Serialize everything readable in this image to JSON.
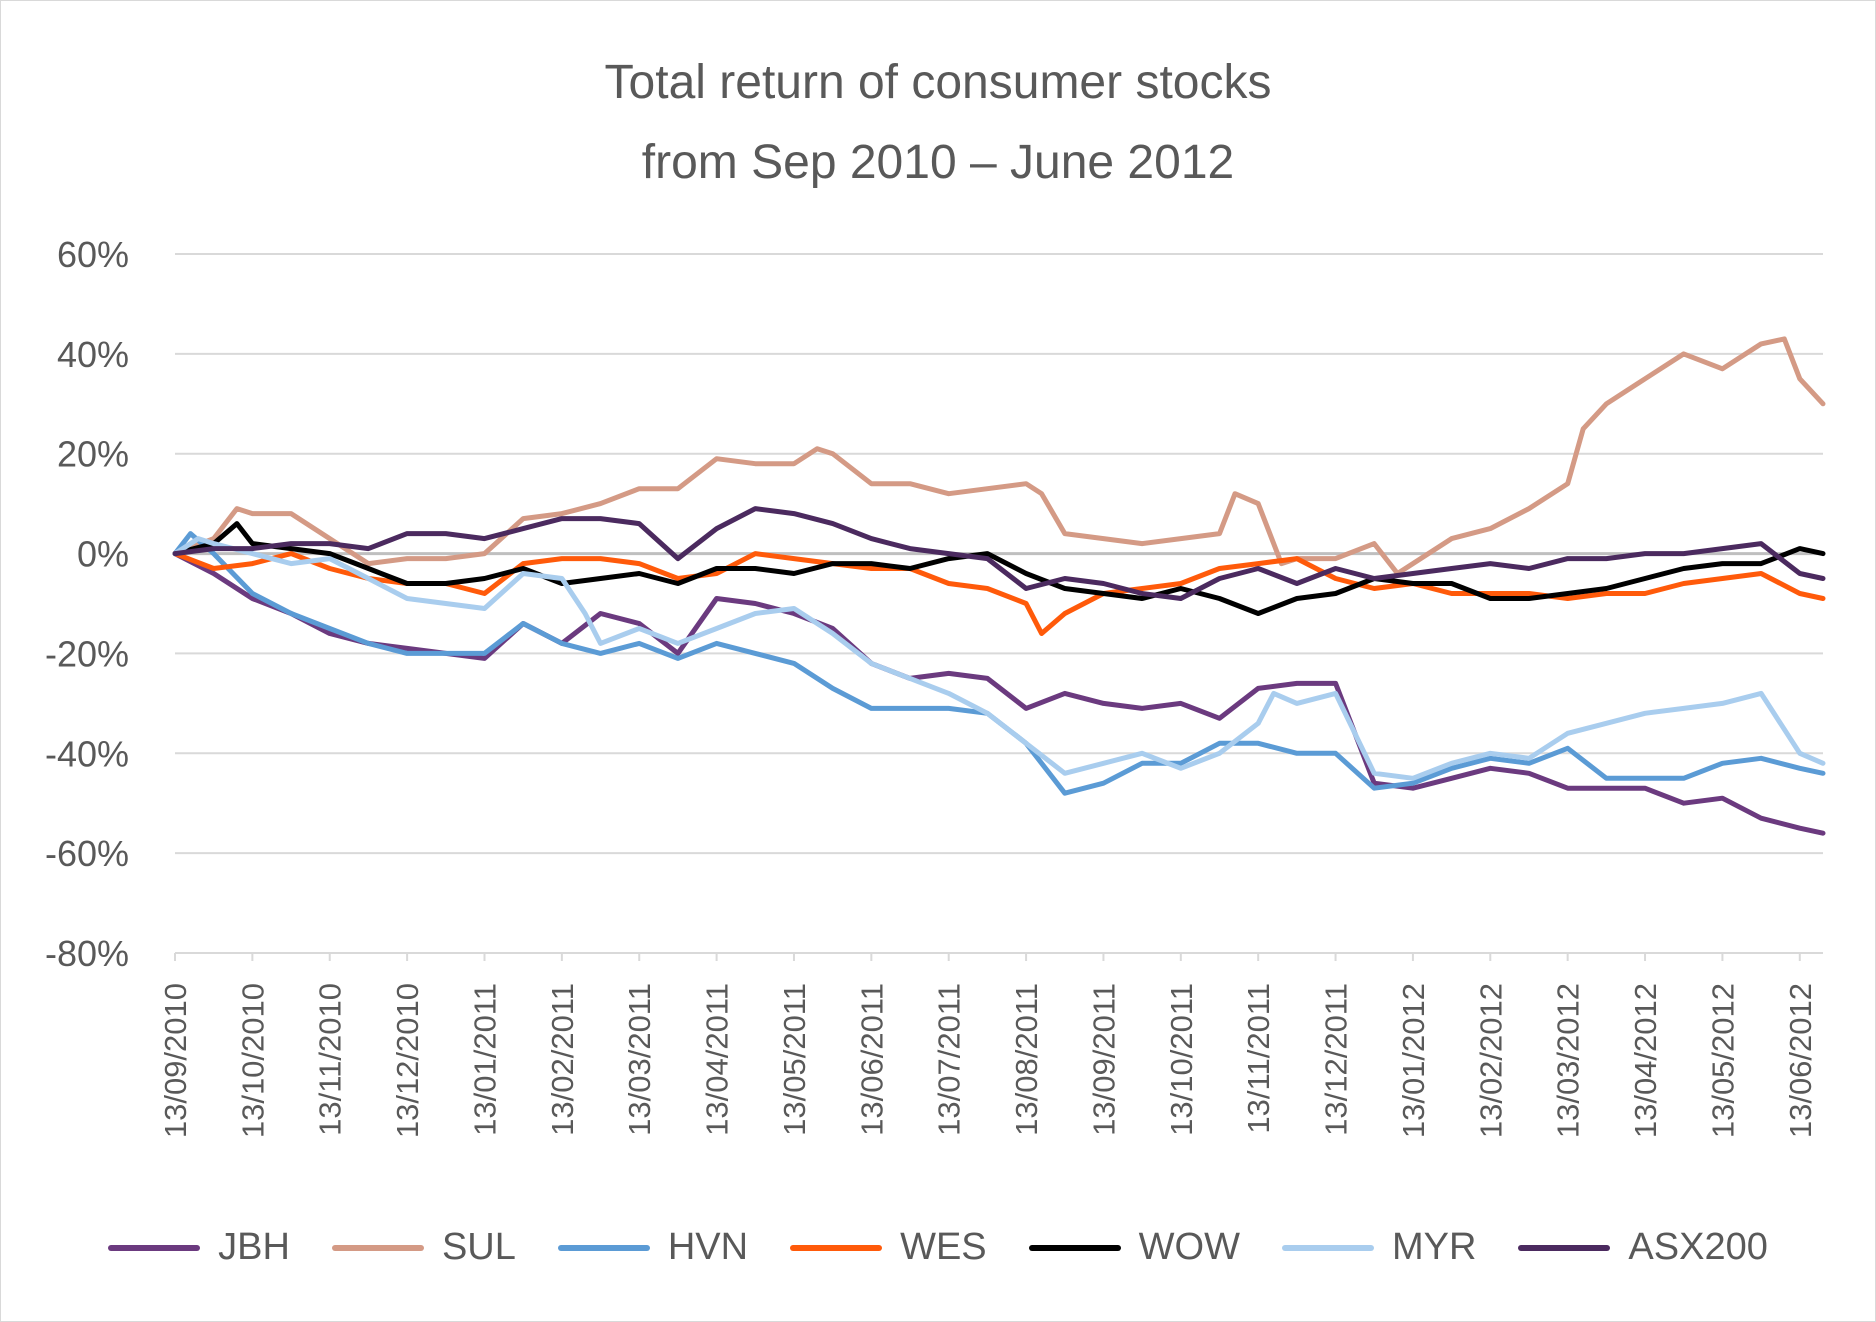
{
  "chart_data": {
    "type": "line",
    "title_lines": [
      "Total return of consumer stocks",
      "from Sep 2010 – June 2012"
    ],
    "yticks": [
      "60%",
      "40%",
      "20%",
      "0%",
      "-20%",
      "-40%",
      "-60%",
      "-80%"
    ],
    "ylim": [
      -80,
      60
    ],
    "xticks": [
      "13/09/2010",
      "13/10/2010",
      "13/11/2010",
      "13/12/2010",
      "13/01/2011",
      "13/02/2011",
      "13/03/2011",
      "13/04/2011",
      "13/05/2011",
      "13/06/2011",
      "13/07/2011",
      "13/08/2011",
      "13/09/2011",
      "13/10/2011",
      "13/11/2011",
      "13/12/2011",
      "13/01/2012",
      "13/02/2012",
      "13/03/2012",
      "13/04/2012",
      "13/05/2012",
      "13/06/2012"
    ],
    "x_unit": "months since 13/09/2010",
    "series": [
      {
        "name": "JBH",
        "color": "#6b3a7f",
        "points": [
          [
            0,
            0
          ],
          [
            0.5,
            -4
          ],
          [
            1,
            -9
          ],
          [
            1.5,
            -12
          ],
          [
            2,
            -16
          ],
          [
            2.5,
            -18
          ],
          [
            3,
            -19
          ],
          [
            3.5,
            -20
          ],
          [
            4,
            -21
          ],
          [
            4.5,
            -14
          ],
          [
            5,
            -18
          ],
          [
            5.5,
            -12
          ],
          [
            6,
            -14
          ],
          [
            6.5,
            -20
          ],
          [
            7,
            -9
          ],
          [
            7.5,
            -10
          ],
          [
            8,
            -12
          ],
          [
            8.5,
            -15
          ],
          [
            9,
            -22
          ],
          [
            9.5,
            -25
          ],
          [
            10,
            -24
          ],
          [
            10.5,
            -25
          ],
          [
            11,
            -31
          ],
          [
            11.5,
            -28
          ],
          [
            12,
            -30
          ],
          [
            12.5,
            -31
          ],
          [
            13,
            -30
          ],
          [
            13.5,
            -33
          ],
          [
            14,
            -27
          ],
          [
            14.5,
            -26
          ],
          [
            15,
            -26
          ],
          [
            15.5,
            -46
          ],
          [
            16,
            -47
          ],
          [
            16.5,
            -45
          ],
          [
            17,
            -43
          ],
          [
            17.5,
            -44
          ],
          [
            18,
            -47
          ],
          [
            18.5,
            -47
          ],
          [
            19,
            -47
          ],
          [
            19.5,
            -50
          ],
          [
            20,
            -49
          ],
          [
            20.5,
            -53
          ],
          [
            21,
            -55
          ],
          [
            21.3,
            -56
          ]
        ]
      },
      {
        "name": "SUL",
        "color": "#d49a85",
        "points": [
          [
            0,
            0
          ],
          [
            0.5,
            3
          ],
          [
            0.8,
            9
          ],
          [
            1,
            8
          ],
          [
            1.5,
            8
          ],
          [
            2,
            3
          ],
          [
            2.5,
            -2
          ],
          [
            3,
            -1
          ],
          [
            3.5,
            -1
          ],
          [
            4,
            0
          ],
          [
            4.5,
            7
          ],
          [
            5,
            8
          ],
          [
            5.5,
            10
          ],
          [
            6,
            13
          ],
          [
            6.5,
            13
          ],
          [
            7,
            19
          ],
          [
            7.5,
            18
          ],
          [
            8,
            18
          ],
          [
            8.3,
            21
          ],
          [
            8.5,
            20
          ],
          [
            9,
            14
          ],
          [
            9.5,
            14
          ],
          [
            10,
            12
          ],
          [
            10.5,
            13
          ],
          [
            11,
            14
          ],
          [
            11.2,
            12
          ],
          [
            11.5,
            4
          ],
          [
            12,
            3
          ],
          [
            12.5,
            2
          ],
          [
            13,
            3
          ],
          [
            13.5,
            4
          ],
          [
            13.7,
            12
          ],
          [
            14,
            10
          ],
          [
            14.3,
            -2
          ],
          [
            14.5,
            -1
          ],
          [
            15,
            -1
          ],
          [
            15.5,
            2
          ],
          [
            15.8,
            -4
          ],
          [
            16,
            -2
          ],
          [
            16.5,
            3
          ],
          [
            17,
            5
          ],
          [
            17.5,
            9
          ],
          [
            18,
            14
          ],
          [
            18.2,
            25
          ],
          [
            18.5,
            30
          ],
          [
            19,
            35
          ],
          [
            19.5,
            40
          ],
          [
            20,
            37
          ],
          [
            20.5,
            42
          ],
          [
            20.8,
            43
          ],
          [
            21,
            35
          ],
          [
            21.3,
            30
          ]
        ]
      },
      {
        "name": "HVN",
        "color": "#5b9bd5",
        "points": [
          [
            0,
            0
          ],
          [
            0.2,
            4
          ],
          [
            0.5,
            0
          ],
          [
            1,
            -8
          ],
          [
            1.5,
            -12
          ],
          [
            2,
            -15
          ],
          [
            2.5,
            -18
          ],
          [
            3,
            -20
          ],
          [
            3.5,
            -20
          ],
          [
            4,
            -20
          ],
          [
            4.5,
            -14
          ],
          [
            5,
            -18
          ],
          [
            5.5,
            -20
          ],
          [
            6,
            -18
          ],
          [
            6.5,
            -21
          ],
          [
            7,
            -18
          ],
          [
            7.5,
            -20
          ],
          [
            8,
            -22
          ],
          [
            8.5,
            -27
          ],
          [
            9,
            -31
          ],
          [
            9.5,
            -31
          ],
          [
            10,
            -31
          ],
          [
            10.5,
            -32
          ],
          [
            11,
            -38
          ],
          [
            11.5,
            -48
          ],
          [
            12,
            -46
          ],
          [
            12.5,
            -42
          ],
          [
            13,
            -42
          ],
          [
            13.5,
            -38
          ],
          [
            14,
            -38
          ],
          [
            14.5,
            -40
          ],
          [
            15,
            -40
          ],
          [
            15.5,
            -47
          ],
          [
            16,
            -46
          ],
          [
            16.5,
            -43
          ],
          [
            17,
            -41
          ],
          [
            17.5,
            -42
          ],
          [
            18,
            -39
          ],
          [
            18.5,
            -45
          ],
          [
            19,
            -45
          ],
          [
            19.5,
            -45
          ],
          [
            20,
            -42
          ],
          [
            20.5,
            -41
          ],
          [
            21,
            -43
          ],
          [
            21.3,
            -44
          ]
        ]
      },
      {
        "name": "WES",
        "color": "#ff5a0a",
        "points": [
          [
            0,
            0
          ],
          [
            0.5,
            -3
          ],
          [
            1,
            -2
          ],
          [
            1.5,
            0
          ],
          [
            2,
            -3
          ],
          [
            2.5,
            -5
          ],
          [
            3,
            -6
          ],
          [
            3.5,
            -6
          ],
          [
            4,
            -8
          ],
          [
            4.5,
            -2
          ],
          [
            5,
            -1
          ],
          [
            5.5,
            -1
          ],
          [
            6,
            -2
          ],
          [
            6.5,
            -5
          ],
          [
            7,
            -4
          ],
          [
            7.5,
            0
          ],
          [
            8,
            -1
          ],
          [
            8.5,
            -2
          ],
          [
            9,
            -3
          ],
          [
            9.5,
            -3
          ],
          [
            10,
            -6
          ],
          [
            10.5,
            -7
          ],
          [
            11,
            -10
          ],
          [
            11.2,
            -16
          ],
          [
            11.5,
            -12
          ],
          [
            12,
            -8
          ],
          [
            12.5,
            -7
          ],
          [
            13,
            -6
          ],
          [
            13.5,
            -3
          ],
          [
            14,
            -2
          ],
          [
            14.5,
            -1
          ],
          [
            15,
            -5
          ],
          [
            15.5,
            -7
          ],
          [
            16,
            -6
          ],
          [
            16.5,
            -8
          ],
          [
            17,
            -8
          ],
          [
            17.5,
            -8
          ],
          [
            18,
            -9
          ],
          [
            18.5,
            -8
          ],
          [
            19,
            -8
          ],
          [
            19.5,
            -6
          ],
          [
            20,
            -5
          ],
          [
            20.5,
            -4
          ],
          [
            21,
            -8
          ],
          [
            21.3,
            -9
          ]
        ]
      },
      {
        "name": "WOW",
        "color": "#000000",
        "points": [
          [
            0,
            0
          ],
          [
            0.5,
            2
          ],
          [
            0.8,
            6
          ],
          [
            1,
            2
          ],
          [
            1.5,
            1
          ],
          [
            2,
            0
          ],
          [
            2.5,
            -3
          ],
          [
            3,
            -6
          ],
          [
            3.5,
            -6
          ],
          [
            4,
            -5
          ],
          [
            4.5,
            -3
          ],
          [
            5,
            -6
          ],
          [
            5.5,
            -5
          ],
          [
            6,
            -4
          ],
          [
            6.5,
            -6
          ],
          [
            7,
            -3
          ],
          [
            7.5,
            -3
          ],
          [
            8,
            -4
          ],
          [
            8.5,
            -2
          ],
          [
            9,
            -2
          ],
          [
            9.5,
            -3
          ],
          [
            10,
            -1
          ],
          [
            10.5,
            0
          ],
          [
            11,
            -4
          ],
          [
            11.5,
            -7
          ],
          [
            12,
            -8
          ],
          [
            12.5,
            -9
          ],
          [
            13,
            -7
          ],
          [
            13.5,
            -9
          ],
          [
            14,
            -12
          ],
          [
            14.5,
            -9
          ],
          [
            15,
            -8
          ],
          [
            15.5,
            -5
          ],
          [
            16,
            -6
          ],
          [
            16.5,
            -6
          ],
          [
            17,
            -9
          ],
          [
            17.5,
            -9
          ],
          [
            18,
            -8
          ],
          [
            18.5,
            -7
          ],
          [
            19,
            -5
          ],
          [
            19.5,
            -3
          ],
          [
            20,
            -2
          ],
          [
            20.5,
            -2
          ],
          [
            21,
            1
          ],
          [
            21.3,
            0
          ]
        ]
      },
      {
        "name": "MYR",
        "color": "#a9cdee",
        "points": [
          [
            0,
            0
          ],
          [
            0.3,
            3
          ],
          [
            0.5,
            2
          ],
          [
            1,
            0
          ],
          [
            1.5,
            -2
          ],
          [
            2,
            -1
          ],
          [
            2.5,
            -5
          ],
          [
            3,
            -9
          ],
          [
            3.5,
            -10
          ],
          [
            4,
            -11
          ],
          [
            4.5,
            -4
          ],
          [
            5,
            -5
          ],
          [
            5.3,
            -12
          ],
          [
            5.5,
            -18
          ],
          [
            6,
            -15
          ],
          [
            6.5,
            -18
          ],
          [
            7,
            -15
          ],
          [
            7.5,
            -12
          ],
          [
            8,
            -11
          ],
          [
            8.5,
            -16
          ],
          [
            9,
            -22
          ],
          [
            9.5,
            -25
          ],
          [
            10,
            -28
          ],
          [
            10.5,
            -32
          ],
          [
            11,
            -38
          ],
          [
            11.5,
            -44
          ],
          [
            12,
            -42
          ],
          [
            12.5,
            -40
          ],
          [
            13,
            -43
          ],
          [
            13.5,
            -40
          ],
          [
            14,
            -34
          ],
          [
            14.2,
            -28
          ],
          [
            14.5,
            -30
          ],
          [
            15,
            -28
          ],
          [
            15.5,
            -44
          ],
          [
            16,
            -45
          ],
          [
            16.5,
            -42
          ],
          [
            17,
            -40
          ],
          [
            17.5,
            -41
          ],
          [
            18,
            -36
          ],
          [
            18.5,
            -34
          ],
          [
            19,
            -32
          ],
          [
            19.5,
            -31
          ],
          [
            20,
            -30
          ],
          [
            20.5,
            -28
          ],
          [
            21,
            -40
          ],
          [
            21.3,
            -42
          ]
        ]
      },
      {
        "name": "ASX200",
        "color": "#4b2a5f",
        "points": [
          [
            0,
            0
          ],
          [
            0.5,
            1
          ],
          [
            1,
            1
          ],
          [
            1.5,
            2
          ],
          [
            2,
            2
          ],
          [
            2.5,
            1
          ],
          [
            3,
            4
          ],
          [
            3.5,
            4
          ],
          [
            4,
            3
          ],
          [
            4.5,
            5
          ],
          [
            5,
            7
          ],
          [
            5.5,
            7
          ],
          [
            6,
            6
          ],
          [
            6.5,
            -1
          ],
          [
            7,
            5
          ],
          [
            7.5,
            9
          ],
          [
            8,
            8
          ],
          [
            8.5,
            6
          ],
          [
            9,
            3
          ],
          [
            9.5,
            1
          ],
          [
            10,
            0
          ],
          [
            10.5,
            -1
          ],
          [
            11,
            -7
          ],
          [
            11.5,
            -5
          ],
          [
            12,
            -6
          ],
          [
            12.5,
            -8
          ],
          [
            13,
            -9
          ],
          [
            13.5,
            -5
          ],
          [
            14,
            -3
          ],
          [
            14.5,
            -6
          ],
          [
            15,
            -3
          ],
          [
            15.5,
            -5
          ],
          [
            16,
            -4
          ],
          [
            16.5,
            -3
          ],
          [
            17,
            -2
          ],
          [
            17.5,
            -3
          ],
          [
            18,
            -1
          ],
          [
            18.5,
            -1
          ],
          [
            19,
            0
          ],
          [
            19.5,
            0
          ],
          [
            20,
            1
          ],
          [
            20.5,
            2
          ],
          [
            21,
            -4
          ],
          [
            21.3,
            -5
          ]
        ]
      }
    ]
  }
}
